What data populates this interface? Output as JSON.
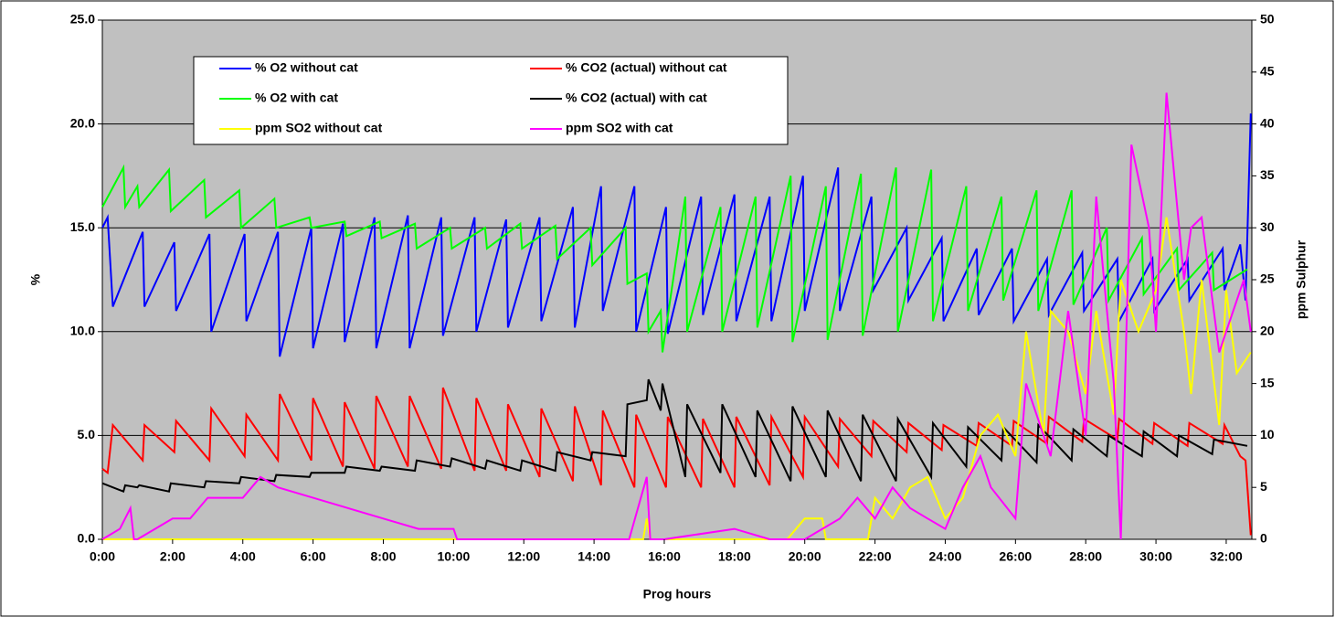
{
  "chart_data": {
    "type": "line",
    "y_label": "%",
    "y2_label": "ppm Sulphur",
    "x_label": "Prog hours",
    "xlim": [
      0,
      32.73
    ],
    "xticks": [
      {
        "value": 0,
        "label": "0:00"
      },
      {
        "value": 2,
        "label": "2:00"
      },
      {
        "value": 4,
        "label": "4:00"
      },
      {
        "value": 6,
        "label": "6:00"
      },
      {
        "value": 8,
        "label": "8:00"
      },
      {
        "value": 10,
        "label": "10:00"
      },
      {
        "value": 12,
        "label": "12:00"
      },
      {
        "value": 14,
        "label": "14:00"
      },
      {
        "value": 16,
        "label": "16:00"
      },
      {
        "value": 18,
        "label": "18:00"
      },
      {
        "value": 20,
        "label": "20:00"
      },
      {
        "value": 22,
        "label": "22:00"
      },
      {
        "value": 24,
        "label": "24:00"
      },
      {
        "value": 26,
        "label": "26:00"
      },
      {
        "value": 28,
        "label": "28:00"
      },
      {
        "value": 30,
        "label": "30:00"
      },
      {
        "value": 32,
        "label": "32:00"
      }
    ],
    "ylim": [
      0,
      25
    ],
    "yticks": [
      {
        "value": 0,
        "label": "0.0"
      },
      {
        "value": 5,
        "label": "5.0"
      },
      {
        "value": 10,
        "label": "10.0"
      },
      {
        "value": 15,
        "label": "15.0"
      },
      {
        "value": 20,
        "label": "20.0"
      },
      {
        "value": 25,
        "label": "25.0"
      }
    ],
    "y2lim": [
      0,
      50
    ],
    "y2ticks": [
      0,
      5,
      10,
      15,
      20,
      25,
      30,
      35,
      40,
      45,
      50
    ],
    "grid": true,
    "background": "#c0c0c0",
    "legend": "top-left",
    "series": [
      {
        "name": "% O2 without cat",
        "color": "#0000ff",
        "x": [
          0,
          0.15,
          0.3,
          1.15,
          1.2,
          2.05,
          2.1,
          3.05,
          3.1,
          4.05,
          4.1,
          5.0,
          5.05,
          5.95,
          6.0,
          6.85,
          6.9,
          7.75,
          7.8,
          8.7,
          8.75,
          9.65,
          9.7,
          10.6,
          10.65,
          11.5,
          11.55,
          12.45,
          12.5,
          13.4,
          13.45,
          14.2,
          14.25,
          15.15,
          15.2,
          16.05,
          16.1,
          17.05,
          17.1,
          18.0,
          18.05,
          19.0,
          19.05,
          19.95,
          20.0,
          20.95,
          21.0,
          21.9,
          21.95,
          22.9,
          22.95,
          23.9,
          23.95,
          24.9,
          24.95,
          25.9,
          25.95,
          26.9,
          26.95,
          27.9,
          27.95,
          28.9,
          28.95,
          29.9,
          29.95,
          30.9,
          30.95,
          31.9,
          31.95,
          32.4,
          32.55,
          32.7
        ],
        "values": [
          15,
          15.5,
          11.2,
          14.8,
          11.2,
          14.3,
          11,
          14.7,
          10,
          14.7,
          10.5,
          14.8,
          8.8,
          15,
          9.2,
          15.2,
          9.5,
          15.5,
          9.2,
          15.6,
          9.2,
          15.5,
          9.8,
          15.5,
          10,
          15.4,
          10.2,
          15.5,
          10.5,
          16,
          10.2,
          17,
          11,
          17,
          10,
          16,
          9.9,
          16.5,
          10.8,
          16.6,
          10.5,
          16.5,
          10.5,
          17.5,
          11,
          17.9,
          11,
          16.5,
          12,
          15,
          11.5,
          14.5,
          10.5,
          14,
          10.8,
          14,
          10.5,
          13.5,
          10.8,
          13.8,
          11,
          13.5,
          10.5,
          13.5,
          11,
          13.5,
          11.5,
          14,
          12,
          14.2,
          11.5,
          20.5
        ]
      },
      {
        "name": "% CO2 (actual) without cat",
        "color": "#ff0000",
        "x": [
          0,
          0.15,
          0.3,
          1.15,
          1.2,
          2.05,
          2.1,
          3.05,
          3.1,
          4.05,
          4.1,
          5.0,
          5.05,
          5.95,
          6.0,
          6.85,
          6.9,
          7.75,
          7.8,
          8.7,
          8.75,
          9.65,
          9.7,
          10.6,
          10.65,
          11.5,
          11.55,
          12.45,
          12.5,
          13.4,
          13.45,
          14.2,
          14.25,
          15.15,
          15.2,
          16.05,
          16.1,
          17.05,
          17.1,
          18.0,
          18.05,
          19.0,
          19.05,
          19.95,
          20.0,
          20.95,
          21.0,
          21.9,
          21.95,
          22.9,
          22.95,
          23.9,
          23.95,
          24.9,
          24.95,
          25.9,
          25.95,
          26.9,
          26.95,
          27.9,
          27.95,
          28.9,
          28.95,
          29.9,
          29.95,
          30.9,
          30.95,
          31.9,
          31.95,
          32.4,
          32.55,
          32.7
        ],
        "values": [
          3.4,
          3.2,
          5.5,
          3.8,
          5.5,
          4.2,
          5.7,
          3.8,
          6.3,
          4,
          6,
          3.8,
          7,
          3.8,
          6.8,
          3.5,
          6.6,
          3.4,
          6.9,
          3.5,
          6.9,
          3.4,
          7.3,
          3.3,
          6.8,
          3.3,
          6.5,
          3,
          6.3,
          2.8,
          6.4,
          2.6,
          6.2,
          2.5,
          6,
          2.5,
          5.9,
          2.5,
          5.8,
          2.5,
          5.9,
          2.6,
          5.9,
          3,
          5.9,
          3.5,
          5.8,
          4,
          5.7,
          4.2,
          5.6,
          4.3,
          5.5,
          4.5,
          5.6,
          4.5,
          5.7,
          4.6,
          5.9,
          4.7,
          5.8,
          4.8,
          5.8,
          4.6,
          5.6,
          4.5,
          5.6,
          4.6,
          5.5,
          4,
          3.8,
          0.2
        ]
      },
      {
        "name": "% O2 with cat",
        "color": "#00ff00",
        "x": [
          0,
          0.6,
          0.65,
          1.0,
          1.05,
          1.9,
          1.95,
          2.9,
          2.95,
          3.9,
          3.95,
          4.9,
          4.95,
          5.9,
          5.95,
          6.9,
          6.95,
          7.9,
          7.95,
          8.9,
          8.95,
          9.9,
          9.95,
          10.9,
          10.95,
          11.9,
          11.95,
          12.9,
          12.95,
          13.9,
          13.95,
          14.9,
          14.95,
          15.5,
          15.55,
          15.9,
          15.95,
          16.6,
          16.65,
          17.6,
          17.65,
          18.6,
          18.65,
          19.6,
          19.65,
          20.6,
          20.65,
          21.6,
          21.65,
          22.6,
          22.65,
          23.6,
          23.65,
          24.6,
          24.65,
          25.6,
          25.65,
          26.6,
          26.65,
          27.6,
          27.65,
          28.6,
          28.65,
          29.6,
          29.65,
          30.6,
          30.65,
          31.6,
          31.65,
          32.6
        ],
        "values": [
          16,
          17.9,
          16,
          17,
          16,
          17.8,
          15.8,
          17.3,
          15.5,
          16.8,
          15,
          16.4,
          15,
          15.5,
          15,
          15.3,
          14.6,
          15.3,
          14.5,
          15.2,
          14,
          15,
          14,
          15,
          14,
          15.2,
          14,
          15.1,
          13.5,
          15,
          13.2,
          15,
          12.3,
          12.8,
          10,
          11,
          9,
          16.5,
          10,
          16,
          10,
          16.5,
          10.2,
          17.5,
          9.5,
          17,
          9.6,
          17.6,
          9.8,
          17.9,
          10,
          17.8,
          10.5,
          17,
          11,
          16.5,
          11.5,
          16.8,
          11,
          16.8,
          11.3,
          15,
          11.5,
          14.5,
          11.8,
          14,
          12,
          13.8,
          12,
          13
        ]
      },
      {
        "name": "% CO2 (actual) with cat",
        "color": "#000000",
        "x": [
          0,
          0.6,
          0.65,
          1.0,
          1.05,
          1.9,
          1.95,
          2.9,
          2.95,
          3.9,
          3.95,
          4.9,
          4.95,
          5.9,
          5.95,
          6.9,
          6.95,
          7.9,
          7.95,
          8.9,
          8.95,
          9.9,
          9.95,
          10.9,
          10.95,
          11.9,
          11.95,
          12.9,
          12.95,
          13.9,
          13.95,
          14.9,
          14.95,
          15.5,
          15.55,
          15.9,
          15.95,
          16.6,
          16.65,
          17.6,
          17.65,
          18.6,
          18.65,
          19.6,
          19.65,
          20.6,
          20.65,
          21.6,
          21.65,
          22.6,
          22.65,
          23.6,
          23.65,
          24.6,
          24.65,
          25.6,
          25.65,
          26.6,
          26.65,
          27.6,
          27.65,
          28.6,
          28.65,
          29.6,
          29.65,
          30.6,
          30.65,
          31.6,
          31.65,
          32.6
        ],
        "values": [
          2.7,
          2.3,
          2.6,
          2.5,
          2.6,
          2.3,
          2.7,
          2.5,
          2.8,
          2.7,
          3.0,
          2.8,
          3.1,
          3,
          3.2,
          3.2,
          3.5,
          3.3,
          3.5,
          3.3,
          3.8,
          3.5,
          3.9,
          3.4,
          3.8,
          3.3,
          3.8,
          3.3,
          4.2,
          3.8,
          4.2,
          4,
          6.5,
          6.7,
          7.7,
          6.2,
          7.5,
          3,
          6.5,
          3.2,
          6.5,
          3,
          6.2,
          2.8,
          6.4,
          3,
          6.2,
          2.8,
          6.0,
          2.8,
          5.8,
          3,
          5.6,
          3.5,
          5.4,
          3.8,
          5.4,
          3.7,
          5.5,
          3.8,
          5.3,
          4,
          5.0,
          4,
          5.2,
          4,
          5.0,
          4.1,
          4.8,
          4.5
        ]
      },
      {
        "name": "ppm SO2 without cat",
        "color": "#ffff00",
        "axis": "y2",
        "x": [
          0,
          15.4,
          15.5,
          15.6,
          16,
          16.1,
          19.5,
          20,
          20.5,
          20.6,
          21.8,
          22,
          22.5,
          23,
          23.5,
          24,
          24.5,
          25,
          25.5,
          26,
          26.3,
          26.8,
          27,
          27.5,
          28,
          28.3,
          28.8,
          29,
          29.5,
          30,
          30.3,
          30.8,
          31,
          31.3,
          31.8,
          32,
          32.3,
          32.7
        ],
        "values": [
          0,
          0,
          2,
          0,
          0,
          0,
          0,
          2,
          2,
          0,
          0,
          4,
          2,
          5,
          6,
          2,
          4,
          10,
          12,
          8,
          20,
          10,
          22,
          20,
          14,
          22,
          12,
          25,
          20,
          24,
          31,
          20,
          14,
          25,
          11,
          24,
          16,
          18
        ]
      },
      {
        "name": "ppm SO2 with cat",
        "color": "#ff00ff",
        "axis": "y2",
        "x": [
          0,
          0.5,
          0.8,
          0.9,
          1.0,
          1.5,
          2.0,
          2.5,
          3.0,
          4.0,
          4.5,
          5.0,
          6.0,
          7.0,
          8.0,
          9.0,
          10.0,
          10.1,
          15.0,
          15.5,
          15.6,
          16.0,
          18.0,
          19.0,
          20.0,
          21.0,
          21.5,
          22.0,
          22.5,
          23.0,
          23.5,
          24.0,
          24.5,
          25.0,
          25.3,
          26.0,
          26.3,
          26.8,
          27.0,
          27.5,
          28.0,
          28.3,
          28.8,
          29.0,
          29.3,
          29.8,
          30.0,
          30.3,
          30.8,
          31.0,
          31.3,
          31.8,
          32.0,
          32.5,
          32.7
        ],
        "values": [
          0,
          1,
          3,
          0,
          0,
          1,
          2,
          2,
          4,
          4,
          6,
          5,
          4,
          3,
          2,
          1,
          1,
          0,
          0,
          6,
          0,
          0,
          1,
          0,
          0,
          2,
          4,
          2,
          5,
          3,
          2,
          1,
          5,
          8,
          5,
          2,
          15,
          10,
          8,
          22,
          10,
          33,
          15,
          0,
          38,
          30,
          20,
          43,
          25,
          30,
          31,
          18,
          20,
          25,
          20
        ]
      }
    ]
  }
}
